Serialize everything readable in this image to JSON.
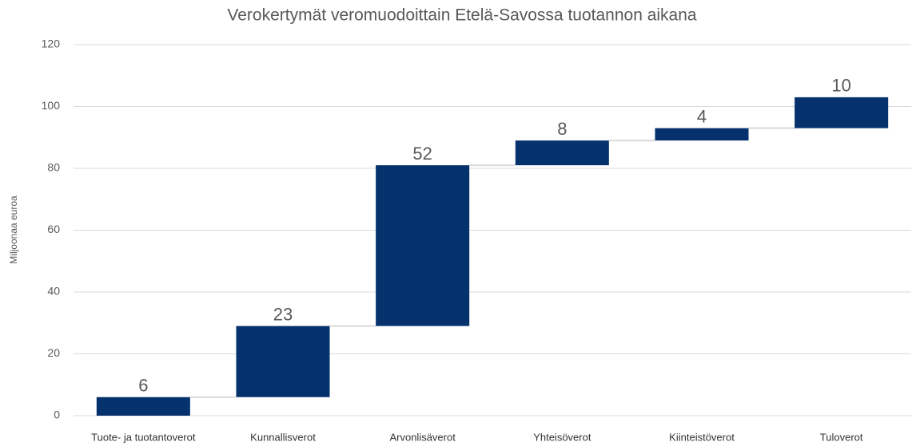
{
  "chart_data": {
    "type": "waterfall",
    "title": "Verokertymät veromuodoittain Etelä-Savossa tuotannon aikana",
    "y_label": "Miljoonaa euroa",
    "categories": [
      "Tuote- ja tuotantoverot",
      "Kunnallisverot",
      "Arvonlisäverot",
      "Yhteisöverot",
      "Kiinteistöverot",
      "Tuloverot"
    ],
    "values": [
      6,
      23,
      52,
      8,
      4,
      10
    ],
    "color": "#05316d",
    "ylim": [
      0,
      120
    ],
    "yticks": [
      0,
      20,
      40,
      60,
      80,
      100,
      120
    ],
    "grid": true
  }
}
